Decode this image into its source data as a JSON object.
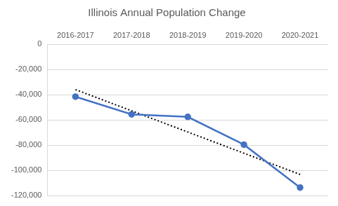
{
  "chart_data": {
    "type": "line",
    "title": "Illinois Annual Population Change",
    "categories": [
      "2016-2017",
      "2017-2018",
      "2018-2019",
      "2019-2020",
      "2020-2021"
    ],
    "series": [
      {
        "color": "#4472c4",
        "marker": "circle",
        "line_style": "solid",
        "values": [
          -41500,
          -55500,
          -57500,
          -79500,
          -113500
        ]
      },
      {
        "color": "#000000",
        "marker": "none",
        "line_style": "dotted",
        "values": [
          -35900,
          -52700,
          -69500,
          -86300,
          -103100
        ]
      }
    ],
    "ylim": [
      -120000,
      0
    ],
    "yticks": [
      {
        "value": -120000,
        "label": "-120,000"
      },
      {
        "value": -100000,
        "label": "-100,000"
      },
      {
        "value": -80000,
        "label": "-80,000"
      },
      {
        "value": -60000,
        "label": "-60,000"
      },
      {
        "value": -40000,
        "label": "-40,000"
      },
      {
        "value": -20000,
        "label": "-20,000"
      },
      0
    ],
    "grid": true
  }
}
